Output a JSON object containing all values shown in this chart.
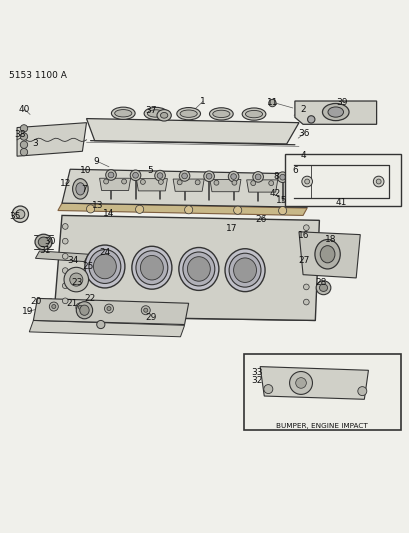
{
  "title": "5153 1100 A",
  "bg_color": "#f0f0eb",
  "fig_width": 4.1,
  "fig_height": 5.33,
  "dpi": 100,
  "line_color": "#333333",
  "text_color": "#111111",
  "font_size": 6.5
}
